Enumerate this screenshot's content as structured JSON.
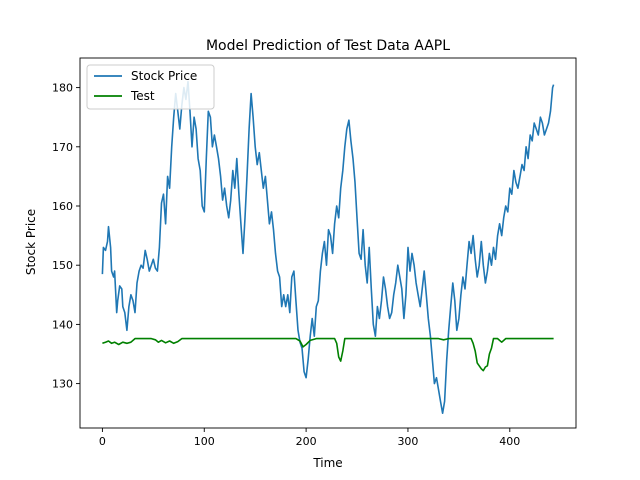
{
  "chart_data": {
    "type": "line",
    "title": "Model Prediction of Test Data AAPL",
    "xlabel": "Time",
    "ylabel": "Stock Price",
    "xlim": [
      -22,
      465
    ],
    "ylim": [
      122.5,
      185
    ],
    "xticks": [
      0,
      100,
      200,
      300,
      400
    ],
    "yticks": [
      130,
      140,
      150,
      160,
      170,
      180
    ],
    "legend_position": "upper-left",
    "grid": false,
    "series": [
      {
        "name": "Stock Price",
        "color": "#1f77b4",
        "points": [
          [
            0,
            148.5
          ],
          [
            1,
            153
          ],
          [
            3,
            152.5
          ],
          [
            5,
            154
          ],
          [
            6,
            156.5
          ],
          [
            8,
            153
          ],
          [
            9,
            149
          ],
          [
            11,
            148
          ],
          [
            12,
            149
          ],
          [
            14,
            142
          ],
          [
            15,
            144
          ],
          [
            17,
            146.5
          ],
          [
            19,
            146
          ],
          [
            20,
            143
          ],
          [
            22,
            142
          ],
          [
            24,
            139
          ],
          [
            26,
            143
          ],
          [
            28,
            145
          ],
          [
            30,
            144
          ],
          [
            32,
            142
          ],
          [
            34,
            147
          ],
          [
            36,
            149
          ],
          [
            38,
            150
          ],
          [
            40,
            149.5
          ],
          [
            42,
            152.5
          ],
          [
            44,
            151
          ],
          [
            46,
            149
          ],
          [
            48,
            150
          ],
          [
            50,
            151
          ],
          [
            52,
            149.5
          ],
          [
            54,
            149
          ],
          [
            56,
            153
          ],
          [
            58,
            160.5
          ],
          [
            60,
            162
          ],
          [
            62,
            157
          ],
          [
            64,
            165
          ],
          [
            66,
            163
          ],
          [
            68,
            170
          ],
          [
            70,
            175
          ],
          [
            72,
            179
          ],
          [
            74,
            176
          ],
          [
            76,
            173
          ],
          [
            78,
            177
          ],
          [
            80,
            180
          ],
          [
            82,
            178
          ],
          [
            84,
            181
          ],
          [
            86,
            176
          ],
          [
            88,
            170
          ],
          [
            90,
            175
          ],
          [
            92,
            173
          ],
          [
            94,
            168
          ],
          [
            96,
            166
          ],
          [
            98,
            160
          ],
          [
            100,
            159
          ],
          [
            102,
            168
          ],
          [
            104,
            176
          ],
          [
            106,
            175
          ],
          [
            108,
            170
          ],
          [
            110,
            172
          ],
          [
            112,
            170
          ],
          [
            114,
            168
          ],
          [
            116,
            165
          ],
          [
            118,
            161
          ],
          [
            120,
            163
          ],
          [
            122,
            160
          ],
          [
            124,
            158
          ],
          [
            126,
            161
          ],
          [
            128,
            166
          ],
          [
            130,
            163
          ],
          [
            132,
            168
          ],
          [
            134,
            162
          ],
          [
            136,
            157
          ],
          [
            138,
            152
          ],
          [
            140,
            158
          ],
          [
            142,
            165
          ],
          [
            144,
            173
          ],
          [
            146,
            179
          ],
          [
            148,
            175
          ],
          [
            150,
            170
          ],
          [
            152,
            167
          ],
          [
            154,
            169
          ],
          [
            156,
            166
          ],
          [
            158,
            163
          ],
          [
            160,
            165
          ],
          [
            162,
            161
          ],
          [
            164,
            157
          ],
          [
            166,
            159
          ],
          [
            168,
            156
          ],
          [
            170,
            152
          ],
          [
            172,
            149
          ],
          [
            174,
            148
          ],
          [
            176,
            143
          ],
          [
            178,
            145
          ],
          [
            180,
            143
          ],
          [
            182,
            145
          ],
          [
            184,
            142
          ],
          [
            186,
            148
          ],
          [
            188,
            149
          ],
          [
            190,
            144
          ],
          [
            192,
            139
          ],
          [
            194,
            137
          ],
          [
            196,
            136
          ],
          [
            198,
            132
          ],
          [
            200,
            131
          ],
          [
            202,
            134
          ],
          [
            204,
            138
          ],
          [
            206,
            141
          ],
          [
            208,
            138
          ],
          [
            210,
            143
          ],
          [
            212,
            144
          ],
          [
            214,
            149
          ],
          [
            216,
            152
          ],
          [
            218,
            154
          ],
          [
            220,
            150
          ],
          [
            222,
            156
          ],
          [
            224,
            155
          ],
          [
            226,
            152
          ],
          [
            228,
            157
          ],
          [
            230,
            160
          ],
          [
            232,
            158
          ],
          [
            234,
            163
          ],
          [
            236,
            166
          ],
          [
            238,
            170
          ],
          [
            240,
            173
          ],
          [
            242,
            174.5
          ],
          [
            244,
            171
          ],
          [
            246,
            168
          ],
          [
            248,
            164
          ],
          [
            250,
            158
          ],
          [
            252,
            152
          ],
          [
            254,
            151
          ],
          [
            256,
            156
          ],
          [
            258,
            150
          ],
          [
            260,
            147
          ],
          [
            262,
            153
          ],
          [
            264,
            146
          ],
          [
            266,
            140
          ],
          [
            268,
            138
          ],
          [
            270,
            143
          ],
          [
            272,
            141
          ],
          [
            274,
            144
          ],
          [
            276,
            148
          ],
          [
            278,
            146
          ],
          [
            280,
            143
          ],
          [
            282,
            141
          ],
          [
            284,
            142
          ],
          [
            286,
            145
          ],
          [
            288,
            147
          ],
          [
            290,
            150
          ],
          [
            292,
            148
          ],
          [
            294,
            146
          ],
          [
            296,
            141
          ],
          [
            298,
            145
          ],
          [
            300,
            153
          ],
          [
            302,
            149
          ],
          [
            304,
            152
          ],
          [
            306,
            150
          ],
          [
            308,
            147
          ],
          [
            310,
            145
          ],
          [
            312,
            143
          ],
          [
            314,
            146
          ],
          [
            316,
            149
          ],
          [
            318,
            145
          ],
          [
            320,
            141
          ],
          [
            322,
            138
          ],
          [
            324,
            134
          ],
          [
            326,
            130
          ],
          [
            328,
            131
          ],
          [
            330,
            129
          ],
          [
            332,
            127
          ],
          [
            334,
            125
          ],
          [
            336,
            127
          ],
          [
            338,
            134
          ],
          [
            340,
            139
          ],
          [
            342,
            143
          ],
          [
            344,
            147
          ],
          [
            346,
            144
          ],
          [
            348,
            139
          ],
          [
            350,
            141
          ],
          [
            352,
            145
          ],
          [
            354,
            148
          ],
          [
            356,
            146
          ],
          [
            358,
            150
          ],
          [
            360,
            154
          ],
          [
            362,
            152
          ],
          [
            364,
            155
          ],
          [
            366,
            151
          ],
          [
            368,
            148
          ],
          [
            370,
            150
          ],
          [
            372,
            154
          ],
          [
            374,
            150
          ],
          [
            376,
            147
          ],
          [
            378,
            149
          ],
          [
            380,
            152
          ],
          [
            382,
            150
          ],
          [
            384,
            153
          ],
          [
            386,
            151
          ],
          [
            388,
            155
          ],
          [
            390,
            157
          ],
          [
            392,
            155
          ],
          [
            394,
            158
          ],
          [
            396,
            160
          ],
          [
            398,
            159
          ],
          [
            400,
            163
          ],
          [
            402,
            162
          ],
          [
            404,
            166
          ],
          [
            406,
            164
          ],
          [
            408,
            163
          ],
          [
            410,
            165
          ],
          [
            412,
            167
          ],
          [
            414,
            166
          ],
          [
            416,
            170
          ],
          [
            418,
            168
          ],
          [
            420,
            172
          ],
          [
            422,
            171
          ],
          [
            424,
            174
          ],
          [
            426,
            173
          ],
          [
            428,
            172
          ],
          [
            430,
            175
          ],
          [
            432,
            174
          ],
          [
            434,
            172
          ],
          [
            436,
            173
          ],
          [
            438,
            174
          ],
          [
            440,
            176
          ],
          [
            442,
            180
          ],
          [
            443,
            180.5
          ]
        ]
      },
      {
        "name": "Test",
        "color": "#008000",
        "points": [
          [
            0,
            136.8
          ],
          [
            3,
            137
          ],
          [
            6,
            137.2
          ],
          [
            9,
            136.8
          ],
          [
            12,
            137
          ],
          [
            16,
            136.6
          ],
          [
            20,
            137
          ],
          [
            24,
            136.8
          ],
          [
            28,
            137
          ],
          [
            32,
            137.6
          ],
          [
            36,
            137.6
          ],
          [
            40,
            137.6
          ],
          [
            44,
            137.6
          ],
          [
            48,
            137.6
          ],
          [
            52,
            137.4
          ],
          [
            55,
            137
          ],
          [
            58,
            137.3
          ],
          [
            62,
            136.9
          ],
          [
            66,
            137.2
          ],
          [
            70,
            136.8
          ],
          [
            74,
            137.1
          ],
          [
            78,
            137.6
          ],
          [
            82,
            137.6
          ],
          [
            100,
            137.6
          ],
          [
            150,
            137.6
          ],
          [
            190,
            137.6
          ],
          [
            194,
            137.2
          ],
          [
            197,
            136.2
          ],
          [
            200,
            136.6
          ],
          [
            204,
            137.3
          ],
          [
            210,
            137.6
          ],
          [
            228,
            137.6
          ],
          [
            230,
            136.8
          ],
          [
            232,
            134.5
          ],
          [
            234,
            133.8
          ],
          [
            236,
            135.5
          ],
          [
            238,
            137.6
          ],
          [
            250,
            137.6
          ],
          [
            300,
            137.6
          ],
          [
            320,
            137.6
          ],
          [
            330,
            137.6
          ],
          [
            335,
            137.4
          ],
          [
            340,
            137.6
          ],
          [
            362,
            137.6
          ],
          [
            364,
            136.8
          ],
          [
            366,
            135.5
          ],
          [
            368,
            133.5
          ],
          [
            370,
            133
          ],
          [
            372,
            132.5
          ],
          [
            374,
            132.2
          ],
          [
            376,
            132.8
          ],
          [
            378,
            133
          ],
          [
            380,
            135
          ],
          [
            382,
            136
          ],
          [
            384,
            137.6
          ],
          [
            388,
            137.6
          ],
          [
            392,
            137
          ],
          [
            396,
            137.6
          ],
          [
            443,
            137.6
          ]
        ]
      }
    ]
  }
}
